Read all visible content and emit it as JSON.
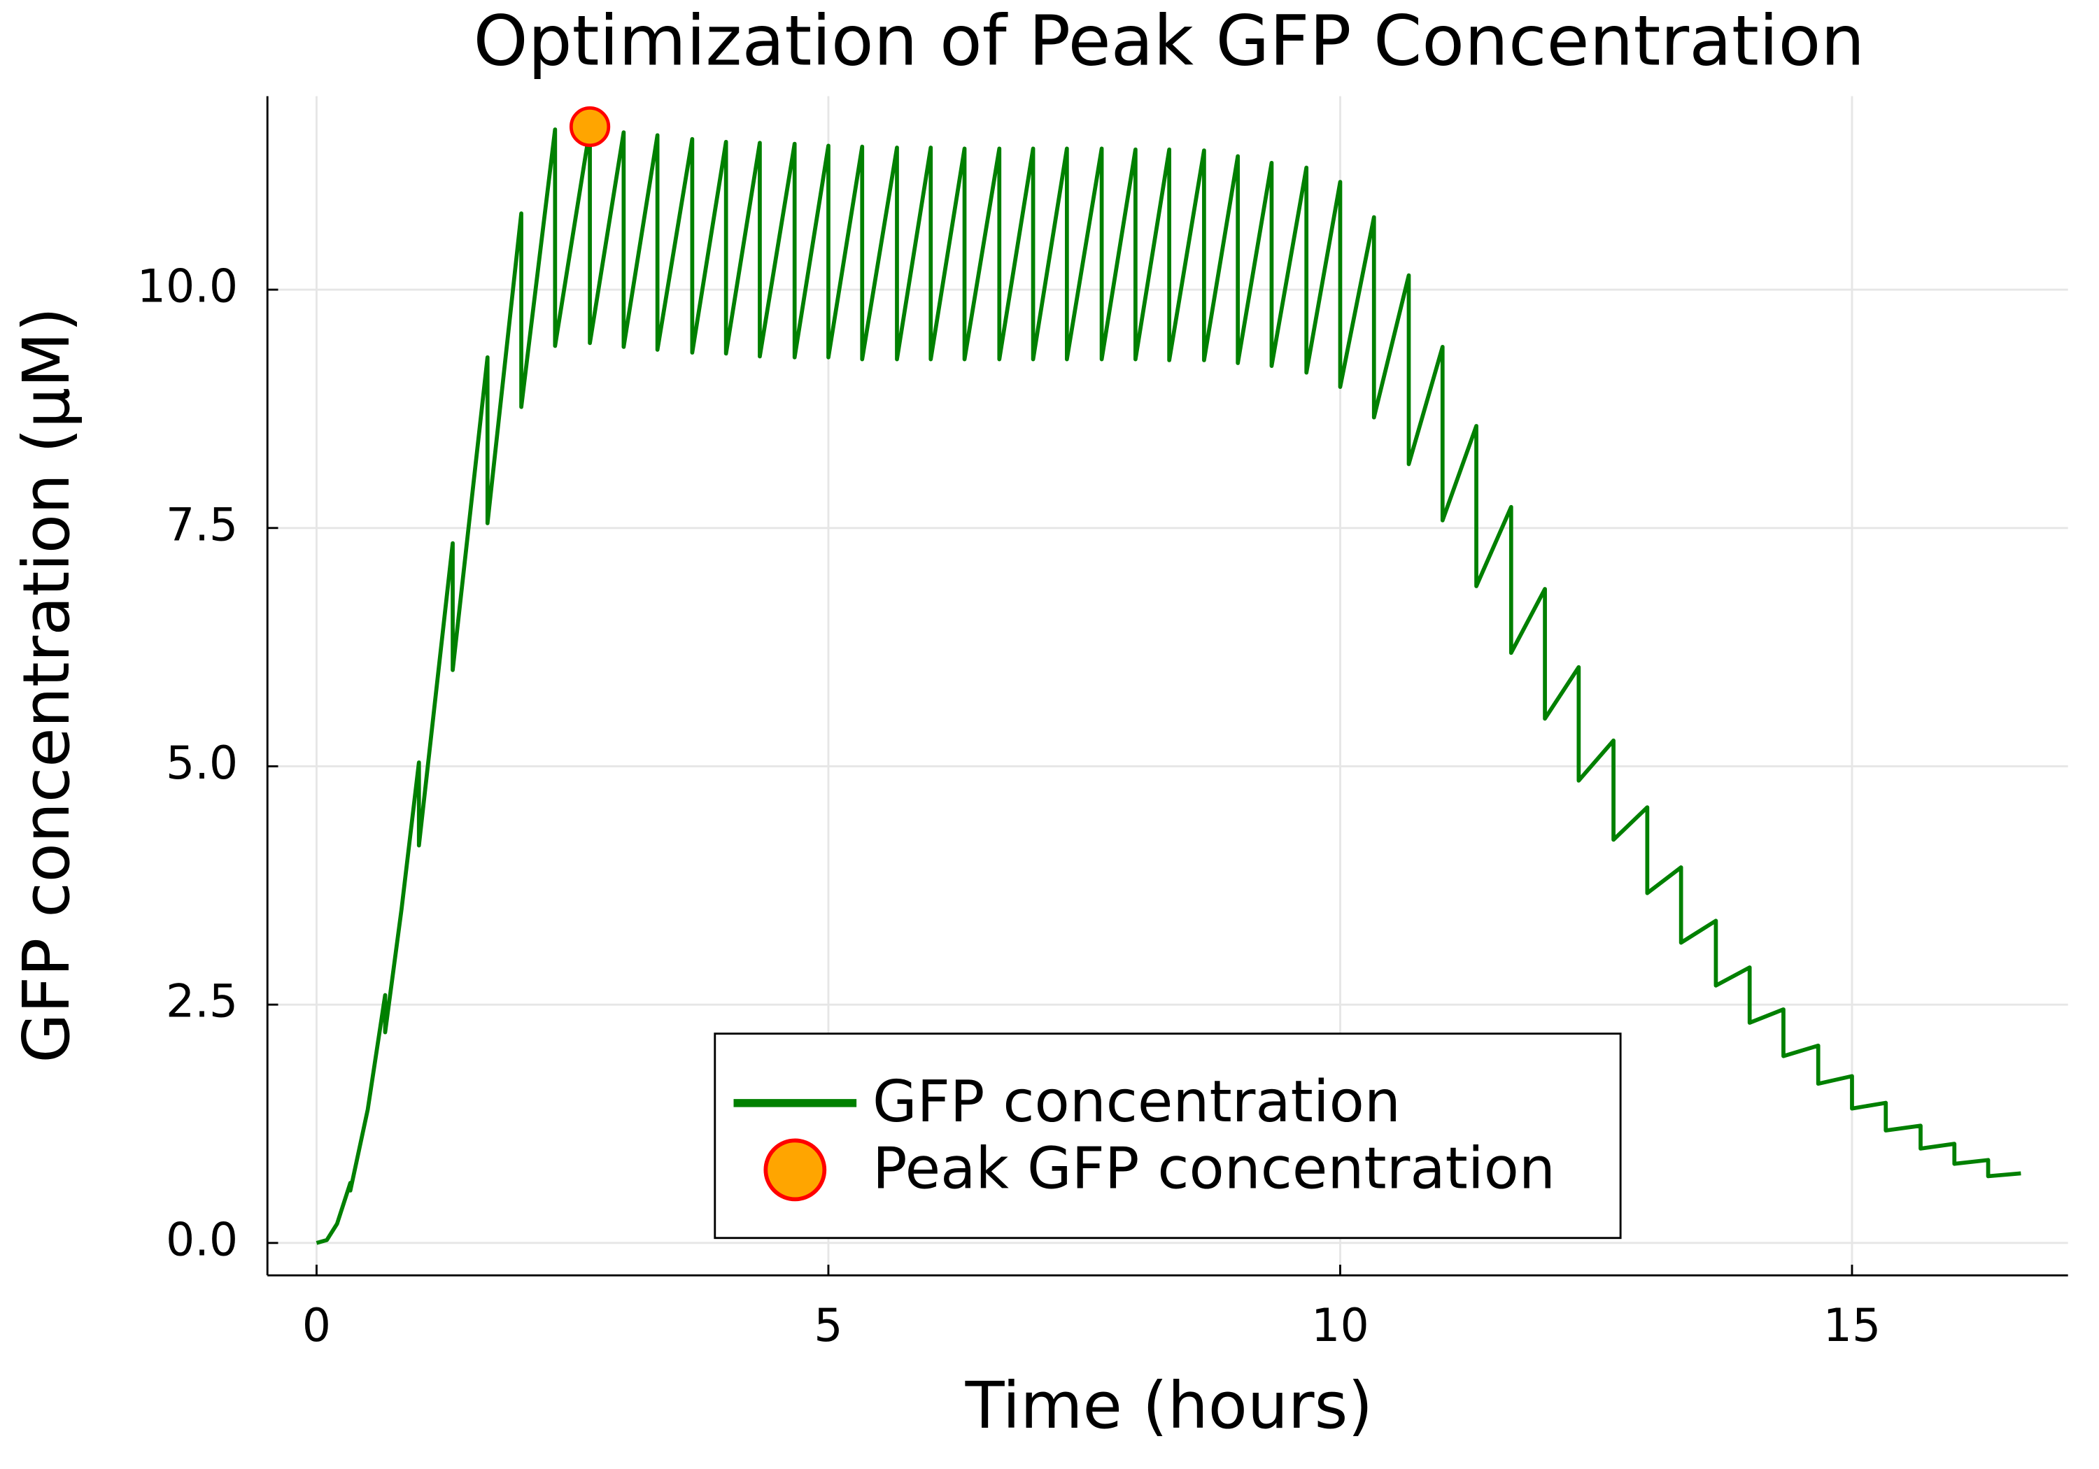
{
  "chart_data": {
    "type": "line",
    "title": "Optimization of Peak GFP Concentration",
    "xlabel": "Time (hours)",
    "ylabel": "GFP concentration (μM)",
    "xlim": [
      -0.48,
      17.11
    ],
    "ylim": [
      -0.34,
      12.03
    ],
    "xticks": [
      0,
      5,
      10,
      15
    ],
    "yticks": [
      {
        "value": 0,
        "label": "0.0"
      },
      2.5,
      {
        "value": 5,
        "label": "5.0"
      },
      7.5,
      {
        "value": 10,
        "label": "10.0"
      }
    ],
    "grid": true,
    "legend": "lower right",
    "series": [
      {
        "name": "GFP concentration",
        "color": "#008000",
        "x": [
          0,
          0.1,
          0.2,
          0.33,
          0.33,
          0.5,
          0.67,
          0.67,
          0.83,
          1.0,
          1.0,
          1.33,
          1.33,
          1.67,
          1.67,
          2.0,
          2.0,
          2.33,
          2.33,
          2.67,
          2.67,
          3.0,
          3.0,
          3.33,
          3.33,
          3.67,
          3.67,
          4.0,
          4.0,
          4.33,
          4.33,
          4.67,
          4.67,
          5.0,
          5.0,
          5.33,
          5.33,
          5.67,
          5.67,
          6.0,
          6.0,
          6.33,
          6.33,
          6.67,
          6.67,
          7.0,
          7.0,
          7.33,
          7.33,
          7.67,
          7.67,
          8.0,
          8.0,
          8.33,
          8.33,
          8.67,
          8.67,
          9.0,
          9.0,
          9.33,
          9.33,
          9.67,
          9.67,
          10.0,
          10.0,
          10.33,
          10.33,
          10.67,
          10.67,
          11.0,
          11.0,
          11.33,
          11.33,
          11.67,
          11.67,
          12.0,
          12.0,
          12.33,
          12.33,
          12.67,
          12.67,
          13.0,
          13.0,
          13.33,
          13.33,
          13.67,
          13.67,
          14.0,
          14.0,
          14.33,
          14.33,
          14.67,
          14.67,
          15.0,
          15.0,
          15.33,
          15.33,
          15.67,
          15.67,
          16.0,
          16.0,
          16.33,
          16.33,
          16.65
        ],
        "values": [
          0,
          0.03,
          0.2,
          0.63,
          0.55,
          1.4,
          2.6,
          2.21,
          3.5,
          5.04,
          4.17,
          7.34,
          6.01,
          9.29,
          7.55,
          10.8,
          8.77,
          11.68,
          9.41,
          11.69,
          9.44,
          11.65,
          9.4,
          11.62,
          9.37,
          11.58,
          9.34,
          11.55,
          9.33,
          11.54,
          9.3,
          11.53,
          9.29,
          11.51,
          9.29,
          11.5,
          9.27,
          11.49,
          9.27,
          11.49,
          9.27,
          11.48,
          9.27,
          11.48,
          9.27,
          11.48,
          9.27,
          11.48,
          9.27,
          11.48,
          9.27,
          11.47,
          9.27,
          11.47,
          9.26,
          11.46,
          9.26,
          11.4,
          9.23,
          11.33,
          9.2,
          11.28,
          9.13,
          11.13,
          8.98,
          10.76,
          8.66,
          10.15,
          8.17,
          9.4,
          7.58,
          8.57,
          6.89,
          7.72,
          6.19,
          6.86,
          5.5,
          6.04,
          4.85,
          5.27,
          4.23,
          4.57,
          3.67,
          3.94,
          3.15,
          3.38,
          2.7,
          2.89,
          2.31,
          2.45,
          1.96,
          2.07,
          1.67,
          1.75,
          1.41,
          1.47,
          1.18,
          1.23,
          0.99,
          1.04,
          0.83,
          0.87,
          0.7,
          0.73
        ]
      },
      {
        "name": "Peak GFP concentration",
        "color": "#ffa500",
        "edge_color": "#ff0000",
        "kind": "scatter",
        "x": [
          2.67
        ],
        "values": [
          11.71
        ]
      }
    ]
  }
}
